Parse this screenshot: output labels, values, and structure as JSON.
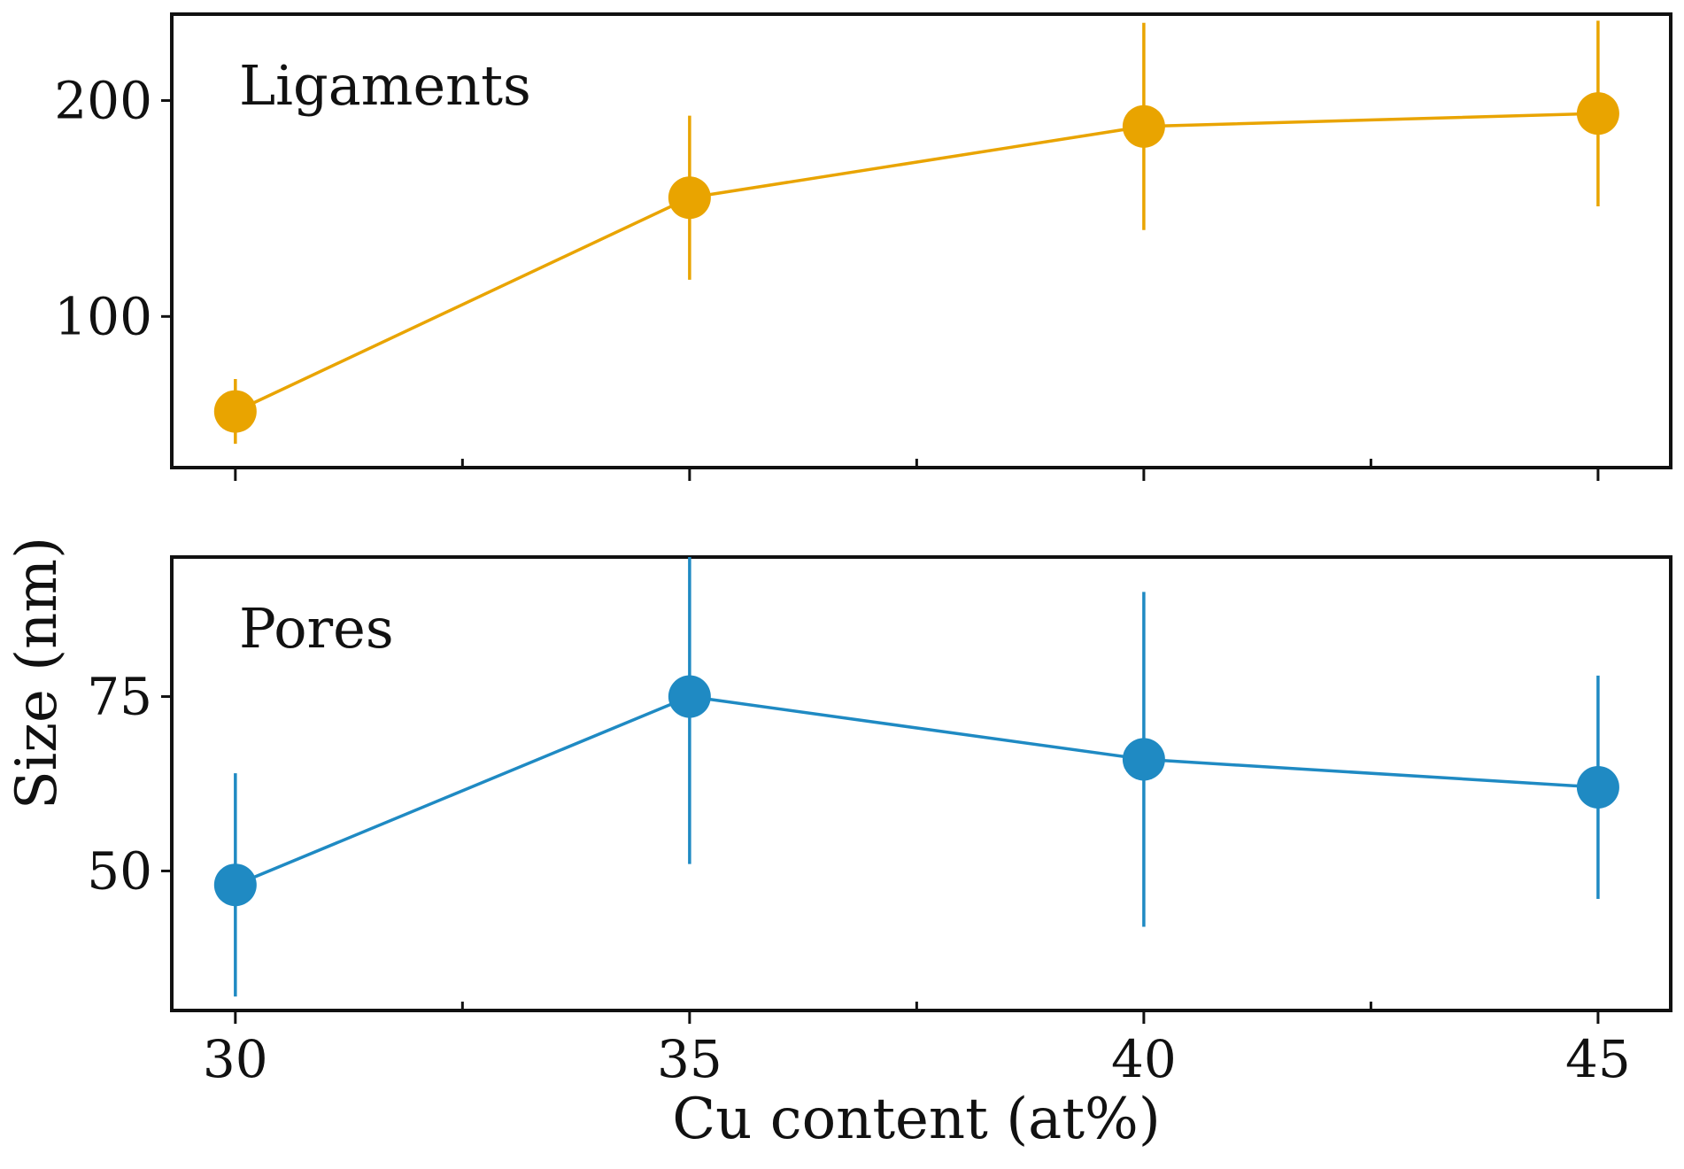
{
  "chart_data": {
    "type": "line",
    "xlabel": "Cu content (at%)",
    "ylabel": "Size (nm)",
    "x": [
      30,
      35,
      40,
      45
    ],
    "xlim": [
      29.3,
      45.8
    ],
    "x_ticks": [
      30,
      35,
      40,
      45
    ],
    "x_minor_ticks": [
      32.5,
      37.5,
      42.5
    ],
    "panels": [
      {
        "id": "ligaments",
        "label": "Ligaments",
        "color": "#E9A400",
        "ylim": [
          30,
          240
        ],
        "y_ticks": [
          100,
          200
        ],
        "series": [
          {
            "name": "Ligaments",
            "x": [
              30,
              35,
              40,
              45
            ],
            "values": [
              56,
              155,
              188,
              194
            ],
            "error": [
              15,
              38,
              48,
              43
            ]
          }
        ]
      },
      {
        "id": "pores",
        "label": "Pores",
        "color": "#1F8AC3",
        "ylim": [
          30,
          95
        ],
        "y_ticks": [
          50,
          75
        ],
        "series": [
          {
            "name": "Pores",
            "x": [
              30,
              35,
              40,
              45
            ],
            "values": [
              48,
              75,
              66,
              62
            ],
            "error": [
              16,
              24,
              24,
              16
            ]
          }
        ]
      }
    ]
  }
}
